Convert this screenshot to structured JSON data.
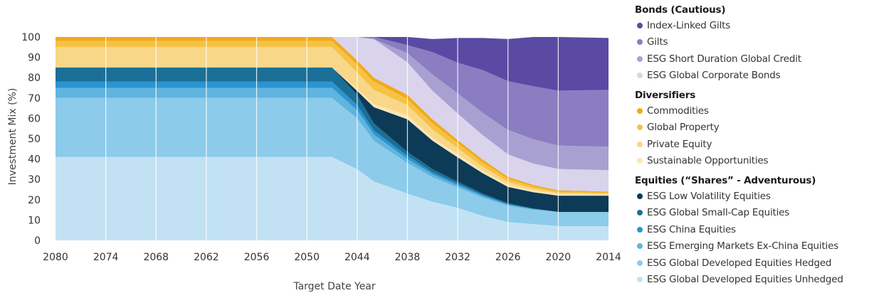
{
  "chart_data": {
    "type": "area",
    "stacked": true,
    "xlabel": "Target Date Year",
    "ylabel": "Investment Mix (%)",
    "ylim": [
      0,
      100
    ],
    "yticks": [
      0,
      10,
      20,
      30,
      40,
      50,
      60,
      70,
      80,
      90,
      100
    ],
    "x_ticks": [
      "2080",
      "2074",
      "2068",
      "2062",
      "2056",
      "2050",
      "2044",
      "2038",
      "2032",
      "2026",
      "2020",
      "2014"
    ],
    "x": [
      2080,
      2047,
      2044,
      2042,
      2038,
      2035,
      2032,
      2029,
      2026,
      2023,
      2020,
      2014
    ],
    "grid": true,
    "legend_position": "right",
    "series": [
      {
        "name": "ESG Global Developed Equities Unhedged",
        "color": "#c2e2f4",
        "values": [
          41,
          41,
          35,
          29,
          23,
          19,
          16,
          12,
          9,
          8,
          7,
          7
        ]
      },
      {
        "name": "ESG Global Developed Equities Hedged",
        "color": "#8ccbea",
        "values": [
          29,
          29,
          25,
          20,
          15,
          12,
          10,
          9,
          8,
          7,
          7,
          7
        ]
      },
      {
        "name": "ESG Emerging Markets Ex-China Equities",
        "color": "#5fb4e0",
        "values": [
          5,
          5,
          4,
          3,
          2,
          1.5,
          1,
          0.8,
          0.5,
          0.3,
          0,
          0
        ]
      },
      {
        "name": "ESG China Equities",
        "color": "#2d94cf",
        "values": [
          3,
          3,
          2.5,
          2,
          1.5,
          1,
          0.8,
          0.5,
          0.3,
          0.2,
          0,
          0
        ]
      },
      {
        "name": "ESG Global Small-Cap Equities",
        "color": "#1b6f97",
        "values": [
          7,
          7,
          5,
          3.5,
          2,
          1.5,
          1,
          0.7,
          0.5,
          0.2,
          0,
          0
        ]
      },
      {
        "name": "ESG Low Volatility Equities",
        "color": "#0d3a57",
        "values": [
          0,
          0,
          2,
          8,
          16,
          14,
          12,
          10,
          8,
          8,
          8,
          8
        ]
      },
      {
        "name": "Sustainable Opportunities",
        "color": "#fbe6b4",
        "values": [
          0,
          0,
          1,
          1.5,
          2,
          1.5,
          1.5,
          1.2,
          1,
          0.8,
          0.7,
          0.5
        ]
      },
      {
        "name": "Private Equity",
        "color": "#f9d789",
        "values": [
          10,
          10,
          8,
          7,
          5,
          4,
          3,
          2,
          1.5,
          1,
          0.6,
          0.5
        ]
      },
      {
        "name": "Global Property",
        "color": "#f6c245",
        "values": [
          3,
          3,
          4,
          4,
          3,
          3,
          2.5,
          2,
          1.5,
          1,
          0.7,
          0.5
        ]
      },
      {
        "name": "Commodities",
        "color": "#f2a91b",
        "values": [
          2,
          2,
          2,
          2,
          2,
          2,
          1.5,
          1.5,
          1,
          0.8,
          0.6,
          0.5
        ]
      },
      {
        "name": "ESG Global Corporate Bonds",
        "color": "#d9d4eb",
        "values": [
          0,
          0,
          11.5,
          19,
          16,
          14,
          13,
          12,
          11,
          10.5,
          10.5,
          10.5
        ]
      },
      {
        "name": "ESG Short Duration Global Credit",
        "color": "#a9a0d2",
        "values": [
          0,
          0,
          0,
          0,
          4.5,
          8,
          10,
          11,
          12,
          12,
          11.5,
          11.5
        ]
      },
      {
        "name": "Gilts",
        "color": "#8a7dc2",
        "values": [
          0,
          0,
          0,
          1,
          4,
          11,
          15,
          21,
          24,
          26,
          27,
          28
        ]
      },
      {
        "name": "Index-Linked Gilts",
        "color": "#5a4aa3",
        "values": [
          0,
          0,
          0,
          0,
          4,
          6.5,
          12.2,
          15.8,
          20.7,
          24.2,
          26.4,
          25.5
        ]
      }
    ]
  },
  "legend": {
    "groups": [
      {
        "title": "Bonds (Cautious)",
        "items": [
          {
            "label": "Index-Linked Gilts",
            "color": "#5a4aa3"
          },
          {
            "label": "Gilts",
            "color": "#8a7dc2"
          },
          {
            "label": "ESG Short Duration Global Credit",
            "color": "#a9a0d2"
          },
          {
            "label": "ESG Global Corporate Bonds",
            "color": "#d9d4eb"
          }
        ]
      },
      {
        "title": "Diversifiers",
        "items": [
          {
            "label": "Commodities",
            "color": "#f2a91b"
          },
          {
            "label": "Global Property",
            "color": "#f6c245"
          },
          {
            "label": "Private Equity",
            "color": "#f9d789"
          },
          {
            "label": "Sustainable Opportunities",
            "color": "#fbe6b4"
          }
        ]
      },
      {
        "title": "Equities (“Shares” - Adventurous)",
        "items": [
          {
            "label": "ESG Low Volatility Equities",
            "color": "#0d3a57"
          },
          {
            "label": "ESG Global Small-Cap Equities",
            "color": "#1b6f97"
          },
          {
            "label": "ESG China Equities",
            "color": "#2d94cf"
          },
          {
            "label": "ESG Emerging Markets Ex-China Equities",
            "color": "#5fb4e0"
          },
          {
            "label": "ESG Global Developed Equities Hedged",
            "color": "#8ccbea"
          },
          {
            "label": "ESG Global Developed Equities Unhedged",
            "color": "#c2e2f4"
          }
        ]
      }
    ]
  }
}
